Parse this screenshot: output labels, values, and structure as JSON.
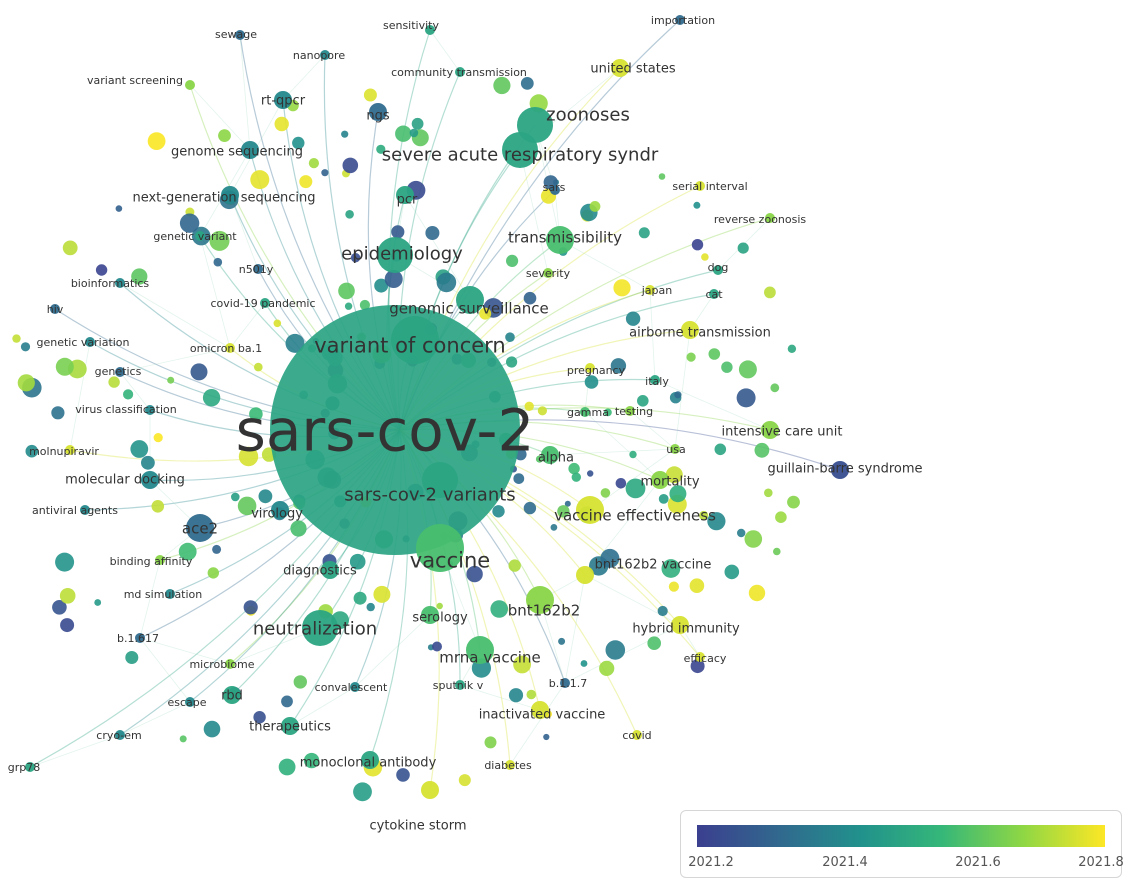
{
  "chart_data": {
    "type": "network",
    "title": "",
    "color_scale": {
      "ticks": [
        "2021.2",
        "2021.4",
        "2021.6",
        "2021.8"
      ],
      "colors": [
        "#3b3f8f",
        "#31688e",
        "#21918c",
        "#35b779",
        "#8fd744",
        "#fde725"
      ]
    },
    "keywords": [
      {
        "label": "sars-cov-2",
        "weight": 10,
        "year": 2021.5
      },
      {
        "label": "variant of concern",
        "weight": 5,
        "year": 2021.5
      },
      {
        "label": "sars-cov-2 variants",
        "weight": 4,
        "year": 2021.5
      },
      {
        "label": "vaccine",
        "weight": 5,
        "year": 2021.6
      },
      {
        "label": "epidemiology",
        "weight": 4,
        "year": 2021.5
      },
      {
        "label": "severe acute respiratory syndr",
        "weight": 4,
        "year": 2021.5
      },
      {
        "label": "zoonoses",
        "weight": 4,
        "year": 2021.5
      },
      {
        "label": "neutralization",
        "weight": 4,
        "year": 2021.5
      },
      {
        "label": "genomic surveillance",
        "weight": 3,
        "year": 2021.5
      },
      {
        "label": "vaccine effectiveness",
        "weight": 3,
        "year": 2021.8
      },
      {
        "label": "transmissibility",
        "weight": 3,
        "year": 2021.6
      },
      {
        "label": "ace2",
        "weight": 3,
        "year": 2021.3
      },
      {
        "label": "bnt162b2",
        "weight": 3,
        "year": 2021.7
      },
      {
        "label": "mrna vaccine",
        "weight": 3,
        "year": 2021.6
      },
      {
        "label": "next-generation sequencing",
        "weight": 2,
        "year": 2021.4
      },
      {
        "label": "genome sequencing",
        "weight": 2,
        "year": 2021.4
      },
      {
        "label": "pcr",
        "weight": 2,
        "year": 2021.5
      },
      {
        "label": "ngs",
        "weight": 2,
        "year": 2021.3
      },
      {
        "label": "rt-qpcr",
        "weight": 2,
        "year": 2021.4
      },
      {
        "label": "monoclonal antibody",
        "weight": 2,
        "year": 2021.5
      },
      {
        "label": "bnt162b2 vaccine",
        "weight": 2,
        "year": 2021.8
      },
      {
        "label": "molecular docking",
        "weight": 2,
        "year": 2021.4
      },
      {
        "label": "virology",
        "weight": 2,
        "year": 2021.4
      },
      {
        "label": "diagnostics",
        "weight": 2,
        "year": 2021.5
      },
      {
        "label": "mortality",
        "weight": 2,
        "year": 2021.7
      },
      {
        "label": "alpha",
        "weight": 2,
        "year": 2021.6
      },
      {
        "label": "serology",
        "weight": 2,
        "year": 2021.6
      },
      {
        "label": "united states",
        "weight": 2,
        "year": 2021.8
      },
      {
        "label": "hybrid immunity",
        "weight": 2,
        "year": 2021.8
      },
      {
        "label": "airborne transmission",
        "weight": 2,
        "year": 2021.8
      },
      {
        "label": "intensive care unit",
        "weight": 2,
        "year": 2021.7
      },
      {
        "label": "guillain-barre syndrome",
        "weight": 2,
        "year": 2021.2
      },
      {
        "label": "rbd",
        "weight": 2,
        "year": 2021.5
      },
      {
        "label": "inactivated vaccine",
        "weight": 2,
        "year": 2021.8
      },
      {
        "label": "therapeutics",
        "weight": 2,
        "year": 2021.5
      },
      {
        "label": "cytokine storm",
        "weight": 2,
        "year": 2021.8
      },
      {
        "label": "sensitivity",
        "weight": 1,
        "year": 2021.5
      },
      {
        "label": "sewage",
        "weight": 1,
        "year": 2021.3
      },
      {
        "label": "nanopore",
        "weight": 1,
        "year": 2021.4
      },
      {
        "label": "importation",
        "weight": 1,
        "year": 2021.3
      },
      {
        "label": "community transmission",
        "weight": 1,
        "year": 2021.5
      },
      {
        "label": "variant screening",
        "weight": 1,
        "year": 2021.7
      },
      {
        "label": "sars",
        "weight": 1,
        "year": 2021.3
      },
      {
        "label": "serial interval",
        "weight": 1,
        "year": 2021.8
      },
      {
        "label": "reverse zoonosis",
        "weight": 1,
        "year": 2021.7
      },
      {
        "label": "genetic variant",
        "weight": 1,
        "year": 2021.5
      },
      {
        "label": "n501y",
        "weight": 1,
        "year": 2021.3
      },
      {
        "label": "severity",
        "weight": 1,
        "year": 2021.7
      },
      {
        "label": "dog",
        "weight": 1,
        "year": 2021.5
      },
      {
        "label": "bioinformatics",
        "weight": 1,
        "year": 2021.4
      },
      {
        "label": "japan",
        "weight": 1,
        "year": 2021.8
      },
      {
        "label": "cat",
        "weight": 1,
        "year": 2021.5
      },
      {
        "label": "hiv",
        "weight": 1,
        "year": 2021.3
      },
      {
        "label": "covid-19 pandemic",
        "weight": 1,
        "year": 2021.5
      },
      {
        "label": "genetic variation",
        "weight": 1,
        "year": 2021.4
      },
      {
        "label": "omicron ba.1",
        "weight": 1,
        "year": 2021.8
      },
      {
        "label": "pregnancy",
        "weight": 1,
        "year": 2021.8
      },
      {
        "label": "genetics",
        "weight": 1,
        "year": 2021.3
      },
      {
        "label": "italy",
        "weight": 1,
        "year": 2021.5
      },
      {
        "label": "virus classification",
        "weight": 1,
        "year": 2021.4
      },
      {
        "label": "gamma",
        "weight": 1,
        "year": 2021.6
      },
      {
        "label": "testing",
        "weight": 1,
        "year": 2021.7
      },
      {
        "label": "molnupiravir",
        "weight": 1,
        "year": 2021.8
      },
      {
        "label": "usa",
        "weight": 1,
        "year": 2021.7
      },
      {
        "label": "antiviral agents",
        "weight": 1,
        "year": 2021.4
      },
      {
        "label": "binding affinity",
        "weight": 1,
        "year": 2021.7
      },
      {
        "label": "md simulation",
        "weight": 1,
        "year": 2021.4
      },
      {
        "label": "b.1.617",
        "weight": 1,
        "year": 2021.3
      },
      {
        "label": "efficacy",
        "weight": 1,
        "year": 2021.8
      },
      {
        "label": "microbiome",
        "weight": 1,
        "year": 2021.7
      },
      {
        "label": "convalescent",
        "weight": 1,
        "year": 2021.4
      },
      {
        "label": "sputnik v",
        "weight": 1,
        "year": 2021.5
      },
      {
        "label": "b.1.1.7",
        "weight": 1,
        "year": 2021.3
      },
      {
        "label": "escape",
        "weight": 1,
        "year": 2021.4
      },
      {
        "label": "covid",
        "weight": 1,
        "year": 2021.8
      },
      {
        "label": "cryo-em",
        "weight": 1,
        "year": 2021.4
      },
      {
        "label": "diabetes",
        "weight": 1,
        "year": 2021.8
      },
      {
        "label": "grp78",
        "weight": 1,
        "year": 2021.5
      }
    ]
  }
}
